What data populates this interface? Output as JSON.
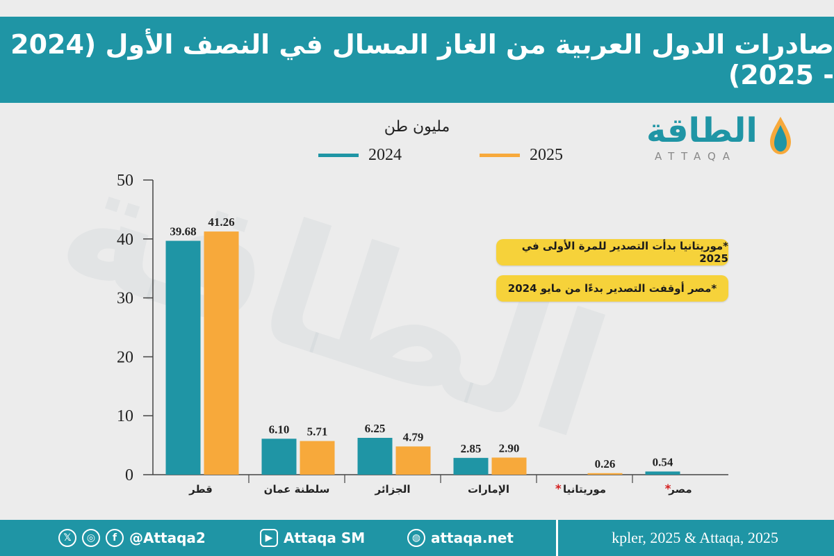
{
  "header": {
    "title": "صادرات الدول العربية من الغاز المسال في النصف الأول (2024 - 2025)"
  },
  "logo": {
    "text": "الطاقة",
    "subtitle": "ATTAQA"
  },
  "notes": [
    "*موريتانيا بدأت التصدير للمرة الأولى في 2025",
    "*مصر أوقفت التصدير بدءًا من مايو 2024"
  ],
  "colors": {
    "header": "#1f95a5",
    "series_2024": "#1f95a5",
    "series_2025": "#f7a93b",
    "note_bg": "#f6d23a",
    "asterisk": "#d42020"
  },
  "chart_data": {
    "type": "bar",
    "ylabel": "مليون طن",
    "ylim": [
      0,
      50
    ],
    "yticks": [
      0,
      10,
      20,
      30,
      40,
      50
    ],
    "categories": [
      "قطر",
      "سلطنة عمان",
      "الجزائر",
      "الإمارات",
      "موريتانيا",
      "مصر"
    ],
    "category_asterisk": [
      false,
      false,
      false,
      false,
      true,
      true
    ],
    "series": [
      {
        "name": "2024",
        "values": [
          39.68,
          6.1,
          6.25,
          2.85,
          null,
          0.54
        ],
        "labels": [
          "39.68",
          "6.10",
          "6.25",
          "2.85",
          "",
          "0.54"
        ]
      },
      {
        "name": "2025",
        "values": [
          41.26,
          5.71,
          4.79,
          2.9,
          0.26,
          null
        ],
        "labels": [
          "41.26",
          "5.71",
          "4.79",
          "2.90",
          "0.26",
          ""
        ]
      }
    ],
    "legend": "top-center",
    "grid": false
  },
  "footer": {
    "handle": "@Attaqa2",
    "youtube": "Attaqa SM",
    "website": "attaqa.net",
    "source": "kpler, 2025 & Attaqa, 2025",
    "icons": [
      "x-icon",
      "instagram-icon",
      "facebook-icon",
      "youtube-icon",
      "globe-icon"
    ]
  }
}
